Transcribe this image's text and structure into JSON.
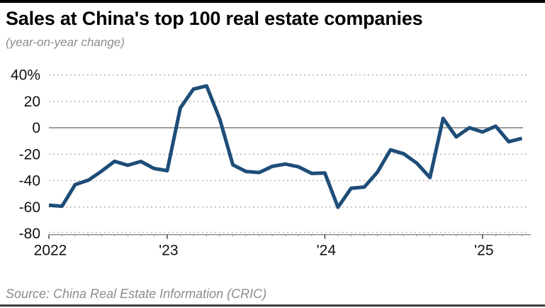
{
  "page": {
    "title": "Sales at China's top 100 real estate companies",
    "subtitle": "(year-on-year change)",
    "source": "Source: China Real Estate Information (CRIC)"
  },
  "colors": {
    "line": "#1d4d78",
    "grid_dotted": "#ababab",
    "zero_line": "#7d7d7d",
    "axis_line": "#7d7d7d",
    "tick_label": "#111111",
    "top_bar": "#000000",
    "bottom_bar": "#3e3e3e"
  },
  "chart_data": {
    "type": "line",
    "title": "Sales at China's top 100 real estate companies",
    "subtitle": "(year-on-year change)",
    "source": "Source: China Real Estate Information (CRIC)",
    "unit": "%",
    "legend": "none",
    "grid": "horizontal dotted, solid zero line",
    "ylim": [
      -80,
      40
    ],
    "yticks": [
      40,
      20,
      0,
      -20,
      -40,
      -60,
      -80
    ],
    "ytick_labels": [
      "40%",
      "20",
      "0",
      "-20",
      "-40",
      "-60",
      "-80"
    ],
    "xtick_labels": [
      "2022",
      "'23",
      "'24",
      "'25"
    ],
    "xtick_month_index": [
      0,
      9,
      21,
      33
    ],
    "x": [
      "Apr 2022",
      "May 2022",
      "Jun 2022",
      "Jul 2022",
      "Aug 2022",
      "Sep 2022",
      "Oct 2022",
      "Nov 2022",
      "Dec 2022",
      "Jan 2023",
      "Feb 2023",
      "Mar 2023",
      "Apr 2023",
      "May 2023",
      "Jun 2023",
      "Jul 2023",
      "Aug 2023",
      "Sep 2023",
      "Oct 2023",
      "Nov 2023",
      "Dec 2023",
      "Jan 2024",
      "Feb 2024",
      "Mar 2024",
      "Apr 2024",
      "May 2024",
      "Jun 2024",
      "Jul 2024",
      "Aug 2024",
      "Sep 2024",
      "Oct 2024",
      "Nov 2024",
      "Dec 2024",
      "Jan 2025",
      "Feb 2025",
      "Mar 2025",
      "Apr 2025"
    ],
    "values": [
      -58.6,
      -59.4,
      -43.0,
      -39.7,
      -32.9,
      -25.4,
      -28.4,
      -25.5,
      -30.8,
      -32.5,
      14.9,
      29.2,
      31.6,
      6.7,
      -28.1,
      -33.1,
      -33.9,
      -29.2,
      -27.5,
      -29.6,
      -34.6,
      -34.2,
      -60.2,
      -45.8,
      -44.9,
      -33.6,
      -16.7,
      -19.7,
      -26.8,
      -37.7,
      7.1,
      -6.9,
      0.0,
      -3.2,
      1.2,
      -10.6,
      -8.0
    ]
  }
}
